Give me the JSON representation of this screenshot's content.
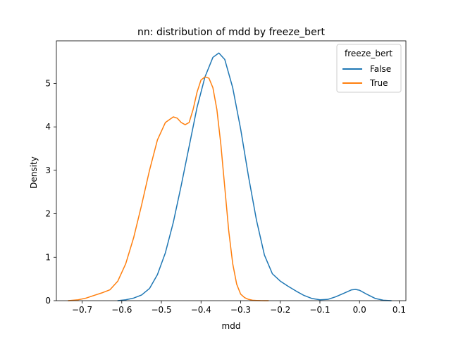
{
  "chart_data": {
    "type": "line",
    "title": "nn: distribution of mdd by freeze_bert",
    "xlabel": "mdd",
    "ylabel": "Density",
    "xlim": [
      -0.765,
      0.117
    ],
    "ylim": [
      0,
      5.98
    ],
    "xticks": [
      -0.7,
      -0.6,
      -0.5,
      -0.4,
      -0.3,
      -0.2,
      -0.1,
      0.0,
      0.1
    ],
    "xtick_labels": [
      "−0.7",
      "−0.6",
      "−0.5",
      "−0.4",
      "−0.3",
      "−0.2",
      "−0.1",
      "0.0",
      "0.1"
    ],
    "yticks": [
      0,
      1,
      2,
      3,
      4,
      5
    ],
    "ytick_labels": [
      "0",
      "1",
      "2",
      "3",
      "4",
      "5"
    ],
    "grid": false,
    "legend": {
      "title": "freeze_bert",
      "position": "top-right"
    },
    "series": [
      {
        "name": "False",
        "color": "#1f77b4",
        "x": [
          -0.61,
          -0.59,
          -0.57,
          -0.55,
          -0.53,
          -0.51,
          -0.49,
          -0.47,
          -0.45,
          -0.43,
          -0.41,
          -0.39,
          -0.37,
          -0.355,
          -0.34,
          -0.32,
          -0.3,
          -0.28,
          -0.26,
          -0.24,
          -0.22,
          -0.2,
          -0.18,
          -0.16,
          -0.14,
          -0.12,
          -0.1,
          -0.08,
          -0.06,
          -0.04,
          -0.02,
          -0.01,
          0.0,
          0.02,
          0.04,
          0.06,
          0.08
        ],
        "y": [
          0.0,
          0.02,
          0.06,
          0.13,
          0.28,
          0.6,
          1.1,
          1.8,
          2.65,
          3.55,
          4.45,
          5.15,
          5.6,
          5.7,
          5.55,
          4.9,
          3.95,
          2.85,
          1.85,
          1.05,
          0.62,
          0.45,
          0.33,
          0.22,
          0.12,
          0.05,
          0.02,
          0.03,
          0.09,
          0.17,
          0.25,
          0.26,
          0.24,
          0.14,
          0.05,
          0.01,
          0.0
        ]
      },
      {
        "name": "True",
        "color": "#ff7f0e",
        "x": [
          -0.735,
          -0.71,
          -0.69,
          -0.67,
          -0.65,
          -0.63,
          -0.61,
          -0.59,
          -0.57,
          -0.55,
          -0.53,
          -0.51,
          -0.49,
          -0.47,
          -0.46,
          -0.45,
          -0.44,
          -0.43,
          -0.42,
          -0.41,
          -0.4,
          -0.39,
          -0.38,
          -0.37,
          -0.36,
          -0.35,
          -0.34,
          -0.33,
          -0.32,
          -0.31,
          -0.3,
          -0.29,
          -0.28,
          -0.27,
          -0.26,
          -0.25,
          -0.24,
          -0.23
        ],
        "y": [
          0.0,
          0.02,
          0.06,
          0.12,
          0.18,
          0.25,
          0.45,
          0.85,
          1.45,
          2.2,
          3.0,
          3.7,
          4.1,
          4.23,
          4.2,
          4.1,
          4.05,
          4.1,
          4.4,
          4.8,
          5.08,
          5.15,
          5.12,
          4.9,
          4.4,
          3.6,
          2.6,
          1.6,
          0.85,
          0.38,
          0.15,
          0.07,
          0.03,
          0.01,
          0.005,
          0.002,
          0.001,
          0.0
        ]
      }
    ]
  }
}
